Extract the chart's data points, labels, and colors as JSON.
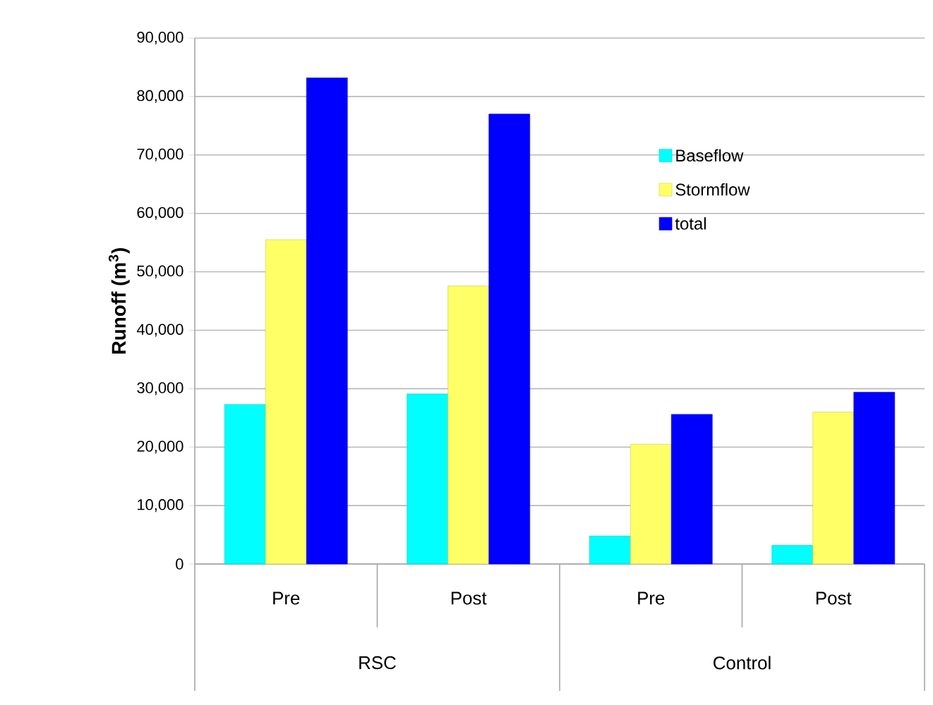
{
  "chart_data": {
    "type": "bar",
    "ylabel": "Runoff (m$^{3}$)",
    "categories": [
      "Pre",
      "Post",
      "Pre",
      "Post"
    ],
    "annotations": [
      "RSC",
      "Control"
    ],
    "series": [
      {
        "name": "Baseflow",
        "color": "#00ffff",
        "values": [
          27300,
          29100,
          4800,
          3200
        ]
      },
      {
        "name": "Stormflow",
        "color": "#ffff66",
        "values": [
          55500,
          47600,
          20500,
          26000
        ]
      },
      {
        "name": "total",
        "color": "#0000ff",
        "values": [
          83200,
          77000,
          25600,
          29400
        ]
      }
    ],
    "ylim": [
      0,
      90000
    ],
    "yticks": [
      0,
      {
        "value": 10000,
        "label": "10,000"
      },
      {
        "value": 20000,
        "label": "20,000"
      },
      {
        "value": 30000,
        "label": "30,000"
      },
      {
        "value": 40000,
        "label": "40,000"
      },
      {
        "value": 50000,
        "label": "50,000"
      },
      {
        "value": 60000,
        "label": "60,000"
      },
      {
        "value": 70000,
        "label": "70,000"
      },
      {
        "value": 80000,
        "label": "80,000"
      },
      {
        "value": 90000,
        "label": "90,000"
      }
    ],
    "grid": "y",
    "legend": "top right"
  }
}
